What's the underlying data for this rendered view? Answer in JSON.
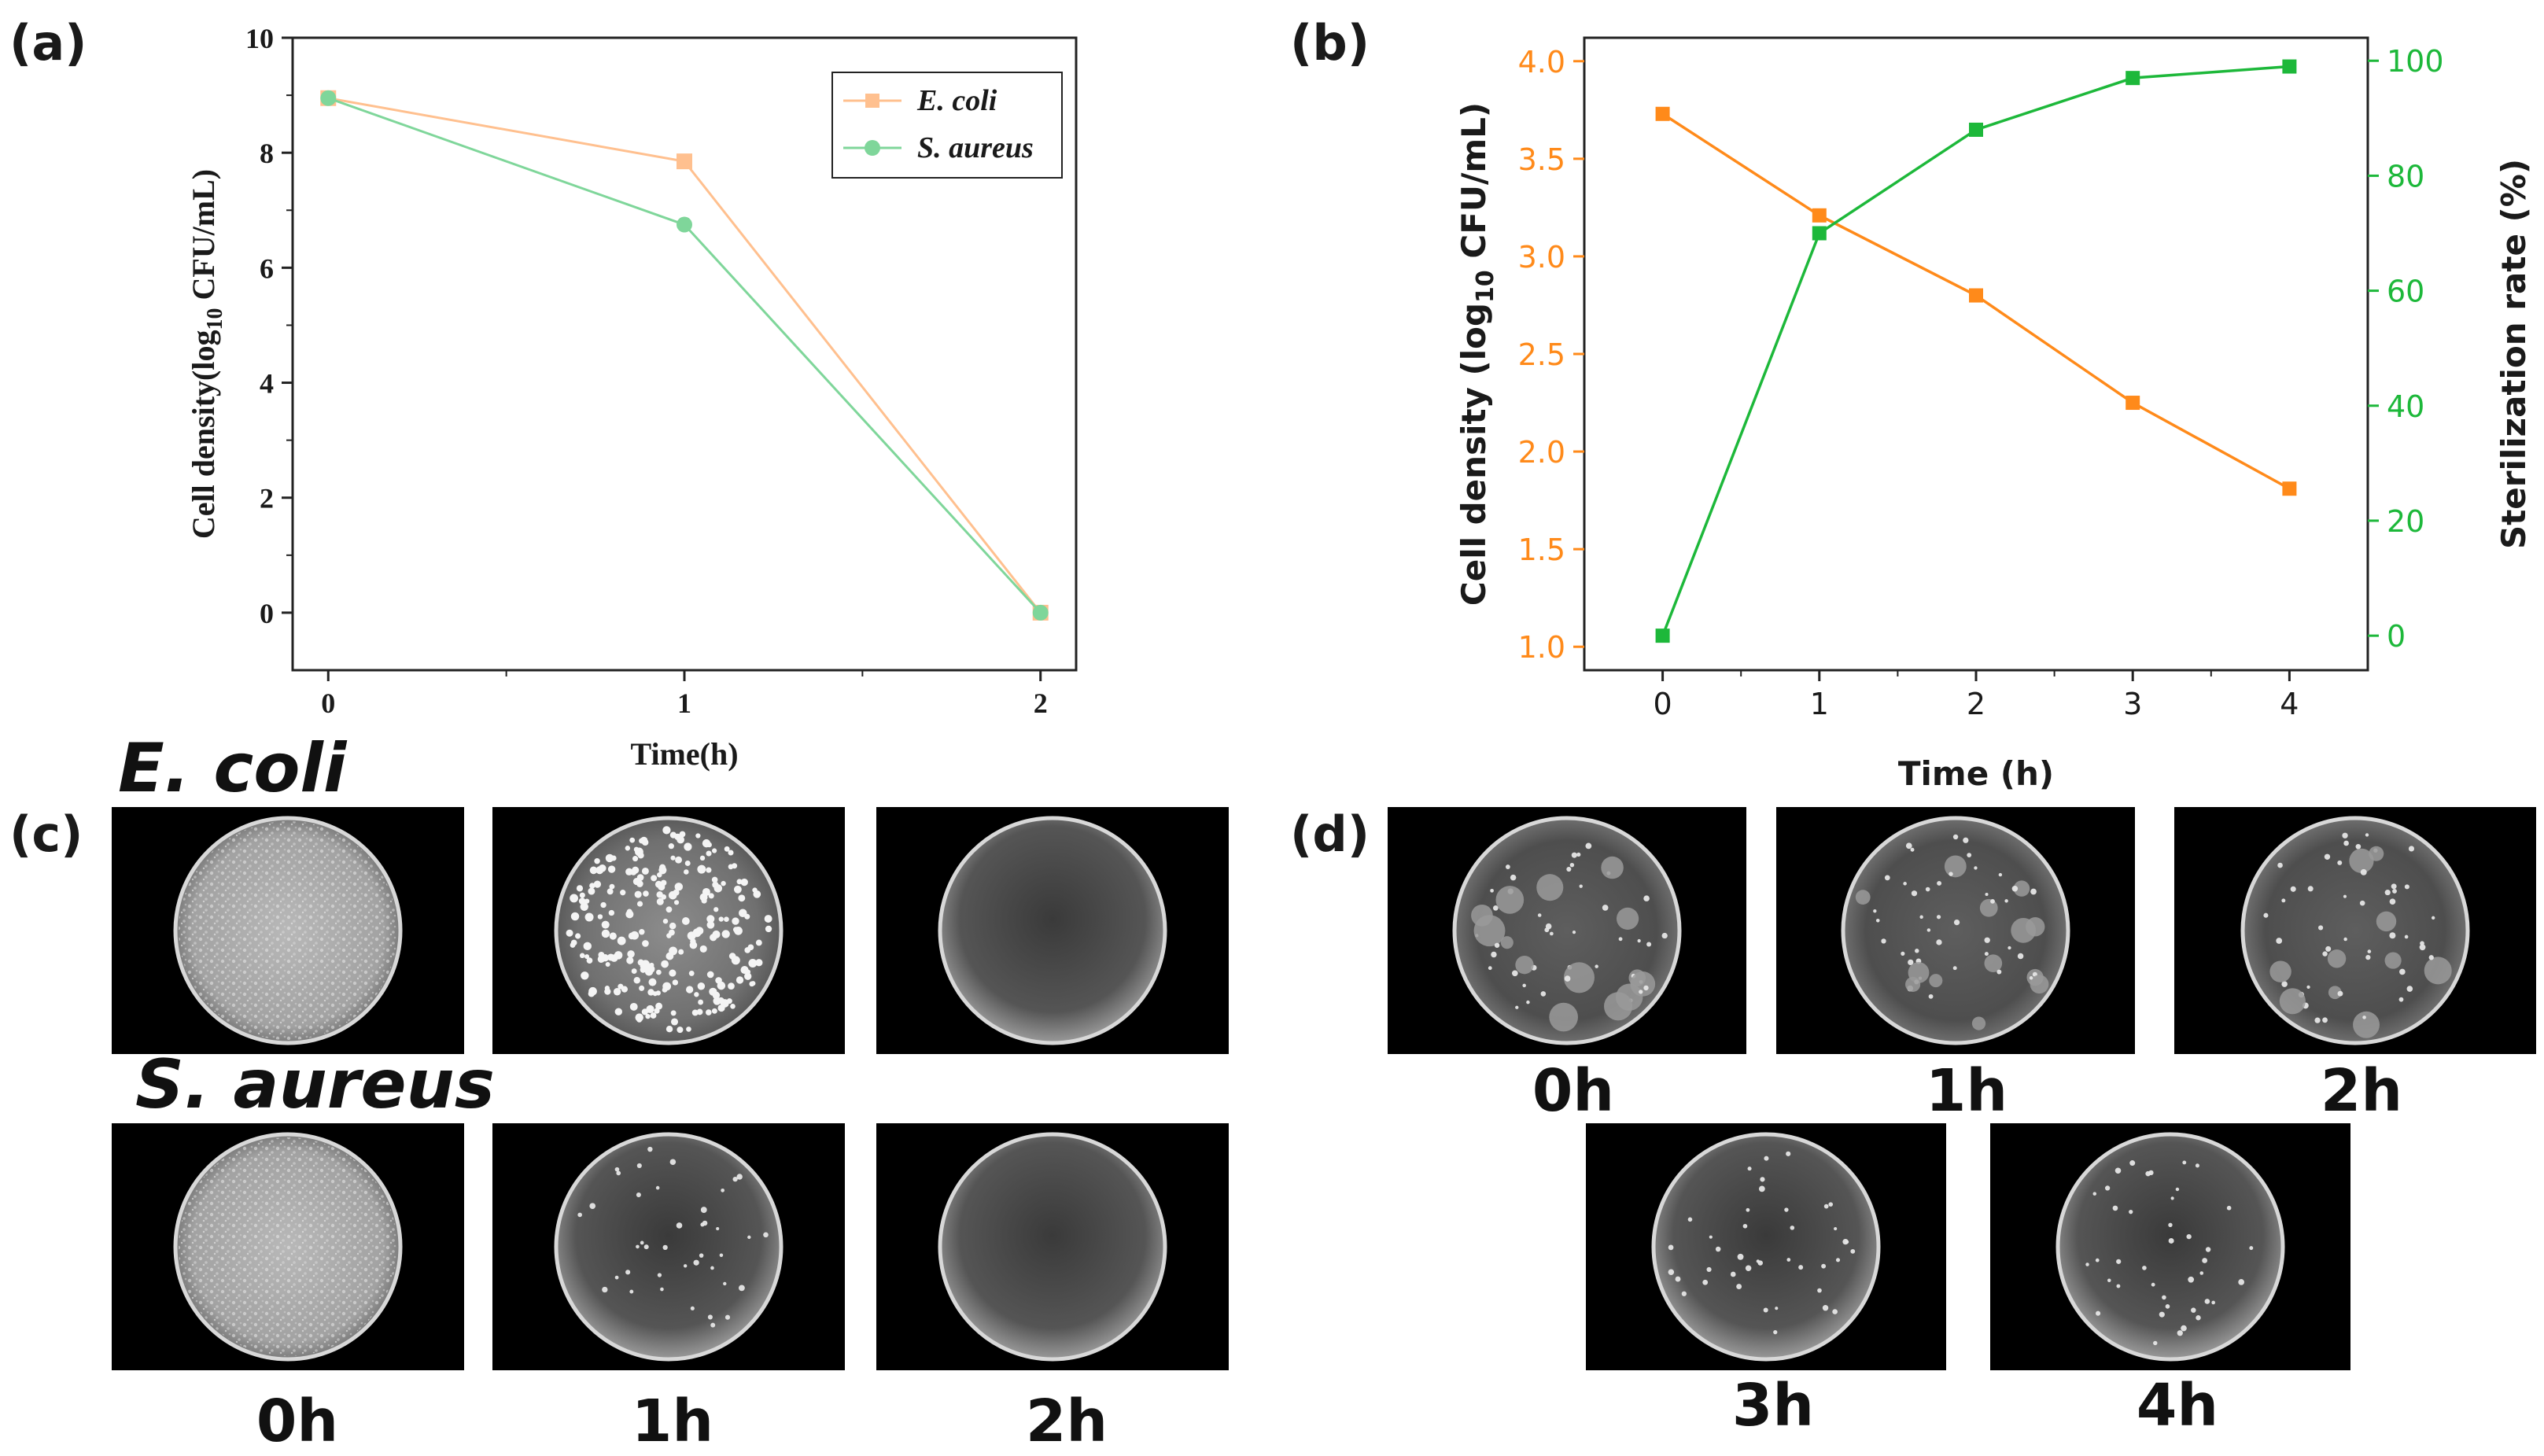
{
  "panel_labels": {
    "a": "(a)",
    "b": "(b)",
    "c": "(c)",
    "d": "(d)"
  },
  "colors": {
    "ecoli": "#FFC08F",
    "saureus": "#7FD69A",
    "orange": "#FF8A1A",
    "green": "#1DB83A",
    "ink": "#1a1a1a"
  },
  "chart_data": [
    {
      "id": "a",
      "type": "line",
      "title": "",
      "xlabel": "Time(h)",
      "ylabel_main": "Cell density(log",
      "ylabel_sub": "10",
      "ylabel_tail": " CFU/mL)",
      "x": [
        0,
        1,
        2
      ],
      "xlim": [
        -0.1,
        2.1
      ],
      "ylim": [
        -1,
        10
      ],
      "xticks": [
        0,
        1,
        2
      ],
      "yticks": [
        0,
        2,
        4,
        6,
        8,
        10
      ],
      "legend_position": "top-right",
      "series": [
        {
          "name": "E. coli",
          "marker": "square",
          "values": [
            8.95,
            7.85,
            0.0
          ]
        },
        {
          "name": "S. aureus",
          "marker": "circle",
          "values": [
            8.95,
            6.75,
            0.0
          ]
        }
      ]
    },
    {
      "id": "b",
      "type": "line",
      "title": "",
      "xlabel": "Time (h)",
      "ylabel_main": "Cell density (log",
      "ylabel_sub": "10",
      "ylabel_tail": " CFU/mL)",
      "y2label": "Sterilization rate (%)",
      "x": [
        0,
        1,
        2,
        3,
        4
      ],
      "xlim": [
        -0.5,
        4.5
      ],
      "ylim": [
        0.88,
        4.12
      ],
      "y2lim": [
        -6,
        104
      ],
      "xticks": [
        0,
        1,
        2,
        3,
        4
      ],
      "yticks": [
        1.0,
        1.5,
        2.0,
        2.5,
        3.0,
        3.5,
        4.0
      ],
      "y2ticks": [
        0,
        20,
        40,
        60,
        80,
        100
      ],
      "series": [
        {
          "name": "Cell density",
          "axis": "left",
          "values": [
            3.73,
            3.21,
            2.8,
            2.25,
            1.81
          ]
        },
        {
          "name": "Sterilization rate",
          "axis": "right",
          "values": [
            0,
            70,
            88,
            97,
            99
          ]
        }
      ]
    }
  ],
  "panel_c": {
    "rows": [
      {
        "label": "E. coli",
        "plates": [
          "lawn",
          "colonies",
          "clear"
        ]
      },
      {
        "label": "S. aureus",
        "plates": [
          "lawn",
          "sparse",
          "clear"
        ]
      }
    ],
    "time_labels": [
      "0h",
      "1h",
      "2h"
    ]
  },
  "panel_d": {
    "top_plates": [
      "medium",
      "medium",
      "light"
    ],
    "top_labels": [
      "0h",
      "1h",
      "2h"
    ],
    "bottom_plates": [
      "sparse",
      "sparse"
    ],
    "bottom_labels": [
      "3h",
      "4h"
    ]
  }
}
